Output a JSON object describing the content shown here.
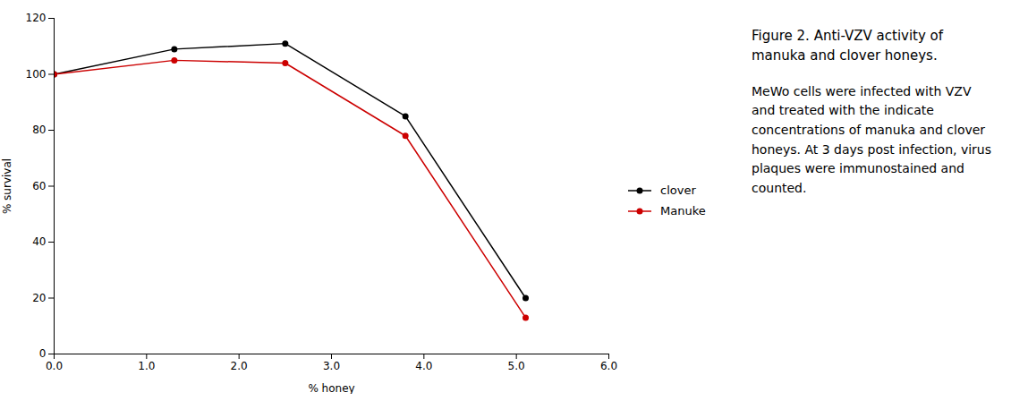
{
  "chart_data": {
    "type": "line",
    "title": "Figure 2. Anti-VZV activity of manuka and clover honeys.",
    "annotations": [
      "MeWo cells were infected with VZV and treated with the indicate concentrations of manuka and clover honeys. At 3 days post infection, virus plaques were immunostained and counted."
    ],
    "xlabel": "% honey",
    "ylabel": "% survival",
    "x": [
      0,
      1.3,
      2.5,
      3.8,
      5.1
    ],
    "series": [
      {
        "name": "clover",
        "color": "#000000",
        "marker": "circle",
        "values": [
          100,
          109,
          111,
          85,
          20
        ]
      },
      {
        "name": "Manuke",
        "color": "#cc0000",
        "marker": "circle",
        "values": [
          100,
          105,
          104,
          78,
          13
        ]
      }
    ],
    "xlim": [
      0,
      6
    ],
    "ylim": [
      0,
      120
    ],
    "xticks": [
      0,
      1,
      2,
      3,
      4,
      5,
      6
    ],
    "yticks": [
      0,
      20,
      40,
      60,
      80,
      100,
      120
    ],
    "grid": false,
    "legend": "right"
  }
}
